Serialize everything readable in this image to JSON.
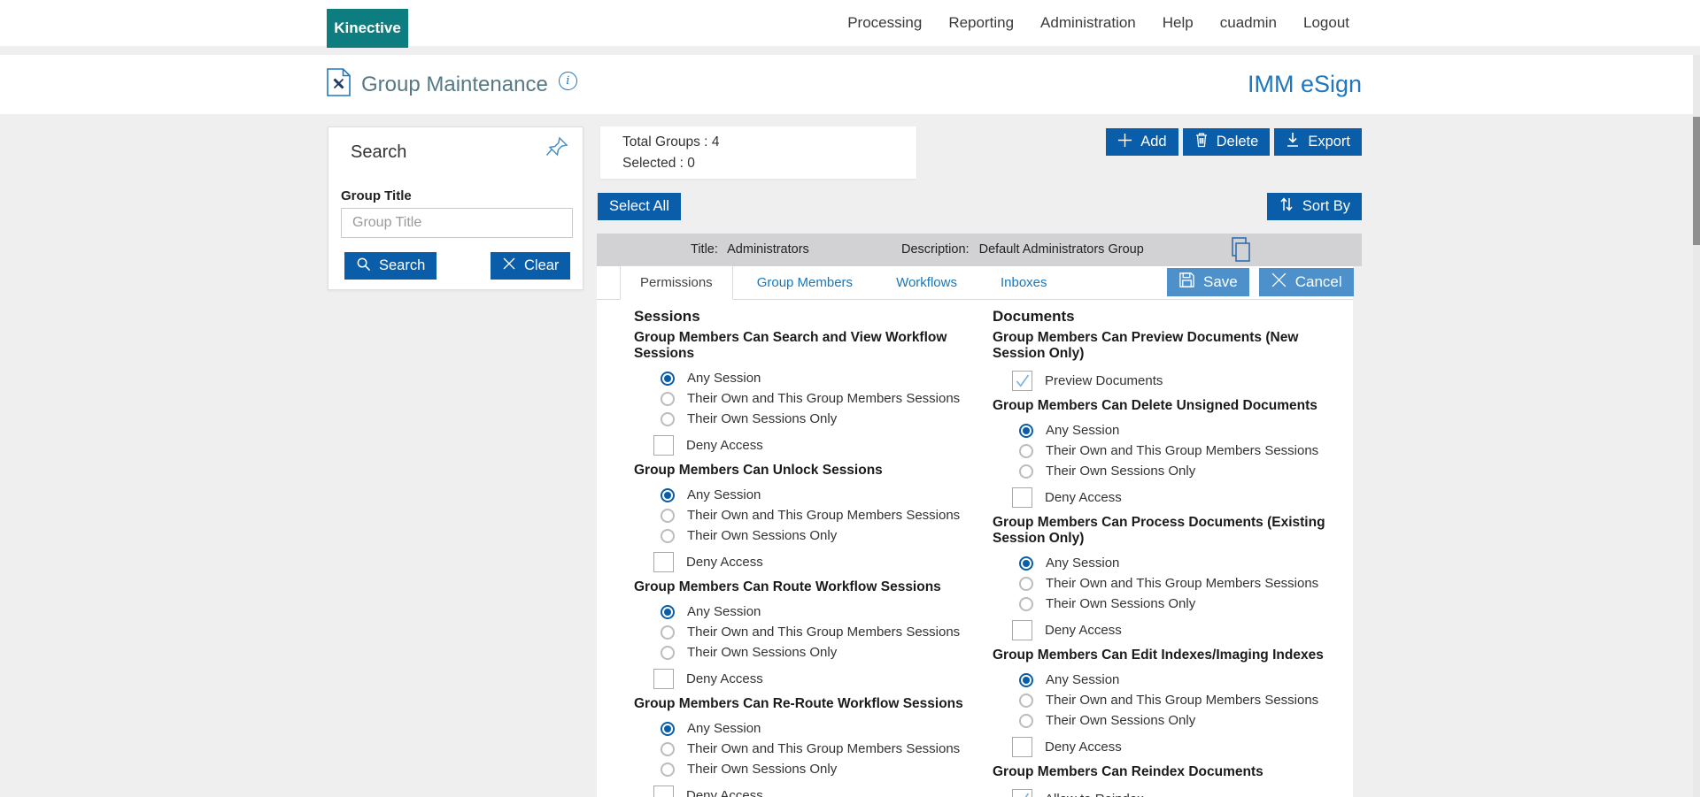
{
  "nav": {
    "logo": "Kinective",
    "items": [
      "Processing",
      "Reporting",
      "Administration",
      "Help",
      "cuadmin",
      "Logout"
    ]
  },
  "header": {
    "title": "Group Maintenance",
    "brand": "IMM eSign"
  },
  "search_panel": {
    "title": "Search",
    "group_title_label": "Group Title",
    "group_title_placeholder": "Group Title",
    "group_title_value": "",
    "search_button": "Search",
    "clear_button": "Clear"
  },
  "summary": {
    "total_label": "Total Groups :",
    "total_value": "4",
    "selected_label": "Selected :",
    "selected_value": "0"
  },
  "toolbar": {
    "add": "Add",
    "delete": "Delete",
    "export": "Export",
    "select_all": "Select All",
    "sort_by": "Sort By"
  },
  "group_row": {
    "title_label": "Title:",
    "title_value": "Administrators",
    "description_label": "Description:",
    "description_value": "Default Administrators Group"
  },
  "tabs": [
    {
      "label": "Permissions",
      "active": true
    },
    {
      "label": "Group Members",
      "active": false
    },
    {
      "label": "Workflows",
      "active": false
    },
    {
      "label": "Inboxes",
      "active": false
    }
  ],
  "actions": {
    "save": "Save",
    "cancel": "Cancel"
  },
  "permissions": {
    "columns": [
      {
        "heading": "Sessions",
        "sections": [
          {
            "title": "Group Members Can Search and View Workflow Sessions",
            "options": [
              {
                "type": "radio",
                "label": "Any Session",
                "selected": true
              },
              {
                "type": "radio",
                "label": "Their Own and This Group Members Sessions",
                "selected": false
              },
              {
                "type": "radio",
                "label": "Their Own Sessions Only",
                "selected": false
              },
              {
                "type": "checkbox",
                "label": "Deny Access",
                "checked": false
              }
            ]
          },
          {
            "title": "Group Members Can Unlock Sessions",
            "options": [
              {
                "type": "radio",
                "label": "Any Session",
                "selected": true
              },
              {
                "type": "radio",
                "label": "Their Own and This Group Members Sessions",
                "selected": false
              },
              {
                "type": "radio",
                "label": "Their Own Sessions Only",
                "selected": false
              },
              {
                "type": "checkbox",
                "label": "Deny Access",
                "checked": false
              }
            ]
          },
          {
            "title": "Group Members Can Route Workflow Sessions",
            "options": [
              {
                "type": "radio",
                "label": "Any Session",
                "selected": true
              },
              {
                "type": "radio",
                "label": "Their Own and This Group Members Sessions",
                "selected": false
              },
              {
                "type": "radio",
                "label": "Their Own Sessions Only",
                "selected": false
              },
              {
                "type": "checkbox",
                "label": "Deny Access",
                "checked": false
              }
            ]
          },
          {
            "title": "Group Members Can Re-Route Workflow Sessions",
            "options": [
              {
                "type": "radio",
                "label": "Any Session",
                "selected": true
              },
              {
                "type": "radio",
                "label": "Their Own and This Group Members Sessions",
                "selected": false
              },
              {
                "type": "radio",
                "label": "Their Own Sessions Only",
                "selected": false
              },
              {
                "type": "checkbox",
                "label": "Deny Access",
                "checked": false
              }
            ]
          }
        ]
      },
      {
        "heading": "Documents",
        "sections": [
          {
            "title": "Group Members Can Preview Documents (New Session Only)",
            "options": [
              {
                "type": "checkbox",
                "label": "Preview Documents",
                "checked": true
              }
            ]
          },
          {
            "title": "Group Members Can Delete Unsigned Documents",
            "options": [
              {
                "type": "radio",
                "label": "Any Session",
                "selected": true
              },
              {
                "type": "radio",
                "label": "Their Own and This Group Members Sessions",
                "selected": false
              },
              {
                "type": "radio",
                "label": "Their Own Sessions Only",
                "selected": false
              },
              {
                "type": "checkbox",
                "label": "Deny Access",
                "checked": false
              }
            ]
          },
          {
            "title": "Group Members Can Process Documents (Existing Session Only)",
            "options": [
              {
                "type": "radio",
                "label": "Any Session",
                "selected": true
              },
              {
                "type": "radio",
                "label": "Their Own and This Group Members Sessions",
                "selected": false
              },
              {
                "type": "radio",
                "label": "Their Own Sessions Only",
                "selected": false
              },
              {
                "type": "checkbox",
                "label": "Deny Access",
                "checked": false
              }
            ]
          },
          {
            "title": "Group Members Can Edit Indexes/Imaging Indexes",
            "options": [
              {
                "type": "radio",
                "label": "Any Session",
                "selected": true
              },
              {
                "type": "radio",
                "label": "Their Own and This Group Members Sessions",
                "selected": false
              },
              {
                "type": "radio",
                "label": "Their Own Sessions Only",
                "selected": false
              },
              {
                "type": "checkbox",
                "label": "Deny Access",
                "checked": false
              }
            ]
          },
          {
            "title": "Group Members Can Reindex Documents",
            "options": [
              {
                "type": "checkbox",
                "label": "Allow to Reindex",
                "checked": true
              }
            ]
          }
        ]
      }
    ]
  },
  "colors": {
    "primary_button": "#0a5da8",
    "secondary_button": "#4e90c9",
    "brand_teal": "#0e7d80",
    "link_blue": "#1976bc",
    "title_text": "#567a84",
    "row_gray": "#d2d2d4",
    "body_gray": "#efefef",
    "check_blue": "#7fb3dd"
  }
}
